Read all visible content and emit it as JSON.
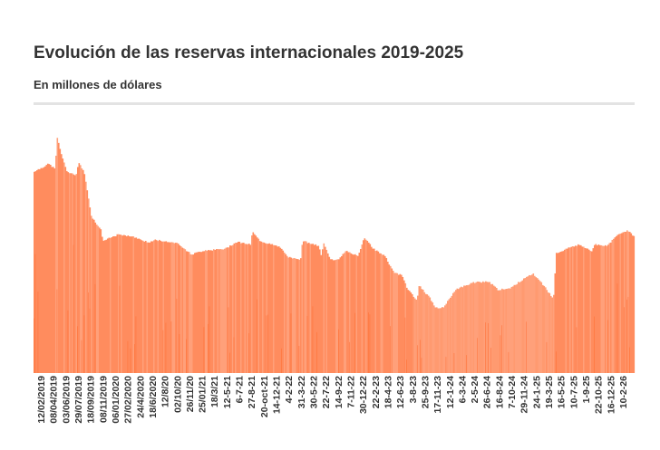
{
  "header": {
    "title": "Evolución de las reservas internacionales 2019-2025",
    "subtitle": "En millones de dólares"
  },
  "colors": {
    "bar": "#ff8c5e",
    "bar_light": "#ffa07a",
    "bar_dark": "#ff6a2e",
    "text": "#333333",
    "rule": "#e3e3e3"
  },
  "chart_data": {
    "type": "bar",
    "title": "Evolución de las reservas internacionales 2019-2025",
    "subtitle": "En millones de dólares",
    "ylabel": "",
    "xlabel": "",
    "ylim": [
      0,
      80000
    ],
    "y_axis_shown": false,
    "grid": false,
    "x_tick_labels": [
      "12/02/2019",
      "08/04/2019",
      "03/06/2019",
      "29/07/2019",
      "18/09/2019",
      "08/11/2019",
      "06/01/2020",
      "27/02/2020",
      "24/4/2020",
      "18/6/2020",
      "12/8/20",
      "02/10/20",
      "26/11/20",
      "25/01/21",
      "18/3/21",
      "12-5-21",
      "6-7-21",
      "27-8-21",
      "20-oct-21",
      "14-12-21",
      "4-2-22",
      "31-3-22",
      "30-5-22",
      "22-7-22",
      "14-9-22",
      "7-11-22",
      "30-12-22",
      "22-2-23",
      "18-4-23",
      "12-6-23",
      "3-8-23",
      "25-9-23",
      "17-11-23",
      "12-1-24",
      "6-3-24",
      "2-5-24",
      "26-6-24",
      "16-8-24",
      "7-10-24",
      "29-11-24",
      "24-1-25",
      "19-3-25",
      "16-5-25",
      "10-7-25",
      "1-9-25",
      "22-10-25",
      "16-12-25",
      "10-2-26"
    ],
    "points": [
      [
        "2019-01-11",
        65300
      ],
      [
        "2019-03-16",
        67900
      ],
      [
        "2019-04-13",
        66200
      ],
      [
        "2019-04-21",
        76700
      ],
      [
        "2019-05-10",
        71100
      ],
      [
        "2019-06-03",
        65300
      ],
      [
        "2019-07-13",
        64100
      ],
      [
        "2019-07-25",
        68200
      ],
      [
        "2019-08-18",
        65300
      ],
      [
        "2019-09-07",
        56400
      ],
      [
        "2019-09-19",
        50600
      ],
      [
        "2019-10-29",
        46700
      ],
      [
        "2019-11-09",
        42900
      ],
      [
        "2020-01-16",
        45000
      ],
      [
        "2020-03-24",
        44100
      ],
      [
        "2020-05-26",
        42300
      ],
      [
        "2020-06-23",
        43200
      ],
      [
        "2020-09-23",
        42300
      ],
      [
        "2020-11-30",
        38500
      ],
      [
        "2021-01-20",
        39700
      ],
      [
        "2021-04-26",
        40300
      ],
      [
        "2021-06-17",
        42600
      ],
      [
        "2021-08-15",
        41700
      ],
      [
        "2021-08-23",
        45900
      ],
      [
        "2021-09-24",
        42900
      ],
      [
        "2021-12-21",
        40900
      ],
      [
        "2022-01-29",
        37600
      ],
      [
        "2022-03-22",
        36800
      ],
      [
        "2022-03-30",
        42900
      ],
      [
        "2022-06-10",
        41200
      ],
      [
        "2022-06-22",
        37900
      ],
      [
        "2022-06-30",
        42300
      ],
      [
        "2022-07-31",
        37000
      ],
      [
        "2022-08-28",
        36500
      ],
      [
        "2022-10-07",
        39700
      ],
      [
        "2022-11-28",
        37900
      ],
      [
        "2022-12-26",
        44100
      ],
      [
        "2023-02-04",
        40300
      ],
      [
        "2023-03-27",
        37900
      ],
      [
        "2023-05-02",
        32900
      ],
      [
        "2023-06-11",
        31500
      ],
      [
        "2023-07-01",
        27600
      ],
      [
        "2023-08-14",
        23500
      ],
      [
        "2023-08-22",
        28500
      ],
      [
        "2023-10-12",
        24100
      ],
      [
        "2023-11-01",
        21200
      ],
      [
        "2023-12-07",
        21200
      ],
      [
        "2024-01-28",
        27000
      ],
      [
        "2024-04-16",
        29400
      ],
      [
        "2024-06-23",
        29700
      ],
      [
        "2024-08-02",
        27000
      ],
      [
        "2024-09-23",
        27600
      ],
      [
        "2024-11-13",
        30000
      ],
      [
        "2025-01-01",
        32300
      ],
      [
        "2025-02-02",
        30000
      ],
      [
        "2025-04-02",
        24100
      ],
      [
        "2025-04-14",
        38800
      ],
      [
        "2025-06-16",
        40900
      ],
      [
        "2025-07-26",
        41700
      ],
      [
        "2025-09-16",
        39400
      ],
      [
        "2025-09-28",
        41700
      ],
      [
        "2025-11-22",
        41200
      ],
      [
        "2026-01-13",
        45300
      ],
      [
        "2026-02-22",
        46200
      ],
      [
        "2026-03-26",
        43800
      ]
    ]
  }
}
